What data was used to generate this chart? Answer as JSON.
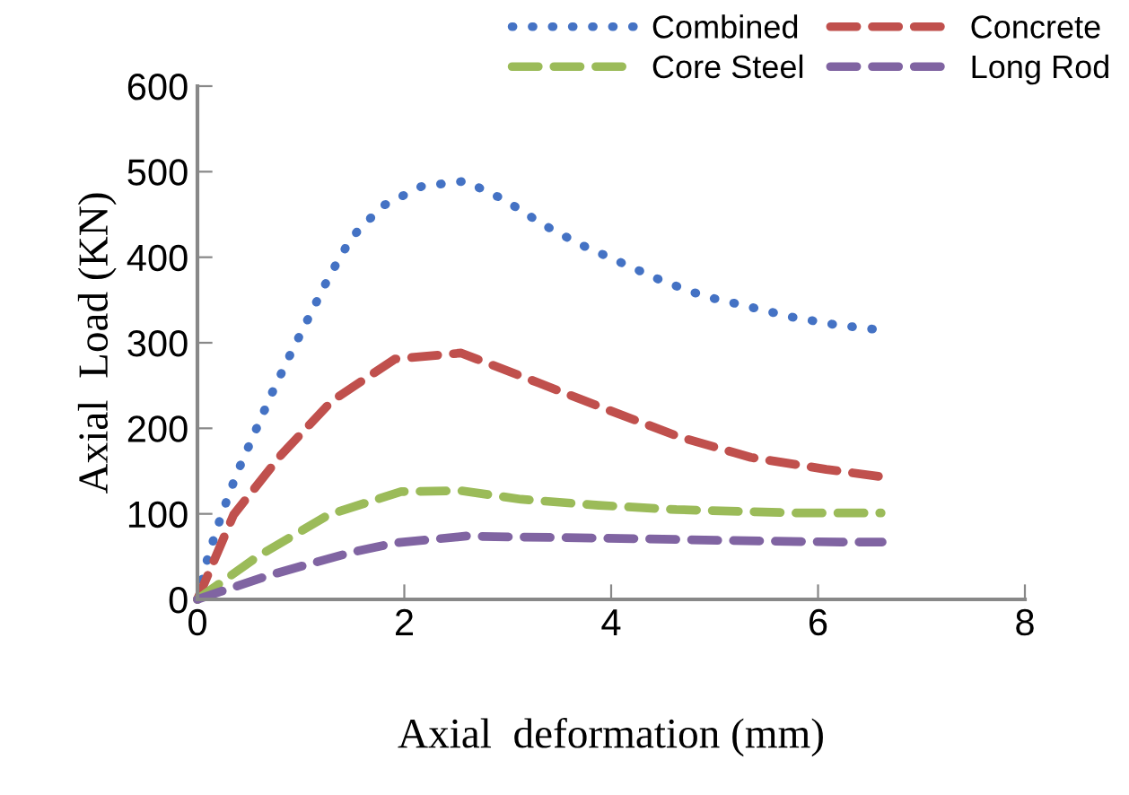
{
  "chart_data": {
    "type": "line",
    "xlabel": "Axial  deformation (mm)",
    "ylabel": "Axial  Load (KN)",
    "xlim": [
      0,
      8
    ],
    "ylim": [
      0,
      600
    ],
    "xticks": [
      0,
      2,
      4,
      6,
      8
    ],
    "yticks": [
      0,
      100,
      200,
      300,
      400,
      500,
      600
    ],
    "grid": false,
    "legend": "top",
    "marker": "none",
    "series": [
      {
        "name": "Combined",
        "color": "#4472c4",
        "line_style": "dotted",
        "x": [
          0,
          0.1,
          0.23,
          0.38,
          0.55,
          0.72,
          0.9,
          1.09,
          1.28,
          1.49,
          1.79,
          2.17,
          2.59,
          2.97,
          3.33,
          3.7,
          4.09,
          4.5,
          4.91,
          5.13,
          5.75,
          6.17,
          6.6
        ],
        "values": [
          0,
          49,
          98,
          147,
          194,
          241,
          287,
          333,
          379,
          423,
          460,
          483,
          489,
          467,
          439,
          415,
          394,
          372,
          354,
          348,
          330,
          321,
          315
        ]
      },
      {
        "name": "Concrete",
        "color": "#c0504d",
        "line_style": "dashed",
        "x": [
          0,
          0.35,
          0.81,
          1.3,
          1.91,
          2.55,
          2.7,
          3.3,
          3.96,
          4.66,
          5.35,
          6.08,
          6.64
        ],
        "values": [
          0,
          99,
          169,
          232,
          281,
          288,
          281,
          253,
          222,
          190,
          166,
          152,
          143
        ]
      },
      {
        "name": "Core Steel",
        "color": "#9bbb59",
        "line_style": "dashed",
        "x": [
          0,
          0.58,
          1.27,
          1.97,
          2.55,
          3.13,
          3.88,
          4.63,
          5.79,
          6.61
        ],
        "values": [
          0,
          50,
          99,
          126,
          127,
          117,
          110,
          105,
          101,
          101
        ]
      },
      {
        "name": "Long Rod",
        "color": "#8064a2",
        "line_style": "dashed",
        "x": [
          0,
          0.69,
          1.07,
          1.49,
          1.91,
          2.6,
          3.05,
          4.25,
          5.03,
          6.22,
          6.62
        ],
        "values": [
          0,
          28,
          41,
          55,
          66,
          74,
          73,
          71,
          69,
          67,
          67
        ]
      }
    ]
  }
}
